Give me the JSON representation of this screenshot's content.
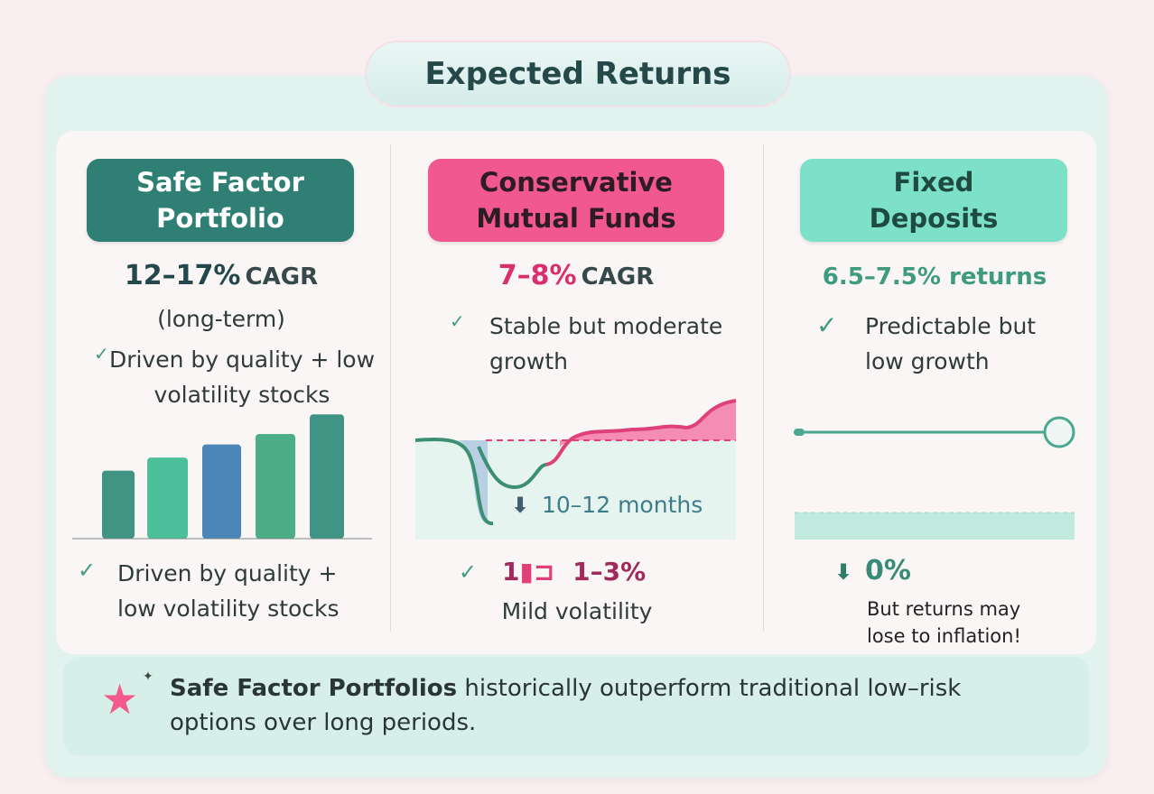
{
  "title": "Expected Returns",
  "columns": [
    {
      "header": "Safe Factor Portfolio",
      "return_value": "12–17%",
      "return_unit": "CAGR",
      "return_note": "(long-term)",
      "point": "Driven by quality + low volatility stocks",
      "footer": "Driven by quality + low volatility stocks",
      "color": "#2f7f74",
      "bar_values": [
        52,
        62,
        72,
        80,
        95
      ]
    },
    {
      "header": "Conservative Mutual Funds",
      "return_value": "7–8%",
      "return_unit": "CAGR",
      "point": "Stable but moderate growth",
      "recovery_label": "10–12 months",
      "drawdown_prefix": "1",
      "drawdown_value": "1–3%",
      "footer": "Mild volatility",
      "color": "#f0588f"
    },
    {
      "header": "Fixed Deposits",
      "return_value": "6.5–7.5% returns",
      "point": "Predictable but low growth",
      "drawdown_value": "0%",
      "footer": "But returns may lose to inflation!",
      "color": "#7de0c8"
    }
  ],
  "banner": {
    "bold": "Safe Factor Portfolios",
    "rest": " historically outperform traditional low–risk options over long periods."
  }
}
